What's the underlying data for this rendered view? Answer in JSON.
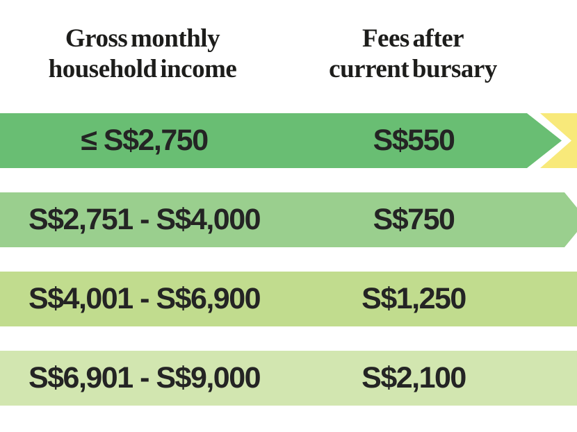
{
  "header": {
    "col1_line1": "Gross monthly",
    "col1_line2": "household income",
    "col2_line1": "Fees after",
    "col2_line2": "current bursary"
  },
  "rows": [
    {
      "income": "≤ S$2,750",
      "fees": "S$550",
      "color": "#69be73",
      "shape": "arrow"
    },
    {
      "income": "S$2,751 - S$4,000",
      "fees": "S$750",
      "color": "#9acf8e",
      "shape": "bevel"
    },
    {
      "income": "S$4,001 - S$6,900",
      "fees": "S$1,250",
      "color": "#c1dc8e",
      "shape": "flat"
    },
    {
      "income": "S$6,901 - S$9,000",
      "fees": "S$2,100",
      "color": "#d2e6b0",
      "shape": "flat"
    }
  ],
  "colors": {
    "highlight_chevron": "#f8e97a",
    "header_text": "#1d1d1b",
    "row_text": "#242424",
    "background": "#ffffff"
  },
  "chart_data": {
    "type": "table",
    "title": "",
    "columns": [
      "Gross monthly household income",
      "Fees after current bursary"
    ],
    "rows": [
      [
        "≤ S$2,750",
        "S$550"
      ],
      [
        "S$2,751 - S$4,000",
        "S$750"
      ],
      [
        "S$4,001 - S$6,900",
        "S$1,250"
      ],
      [
        "S$6,901 - S$9,000",
        "S$2,100"
      ]
    ],
    "layout_hints": {
      "row_colors": [
        "#69be73",
        "#9acf8e",
        "#c1dc8e",
        "#d2e6b0"
      ],
      "highlighted_row_index": 0,
      "highlight_style": "right-pointing arrow with yellow chevron at right edge",
      "grid": false,
      "legend": false
    }
  }
}
